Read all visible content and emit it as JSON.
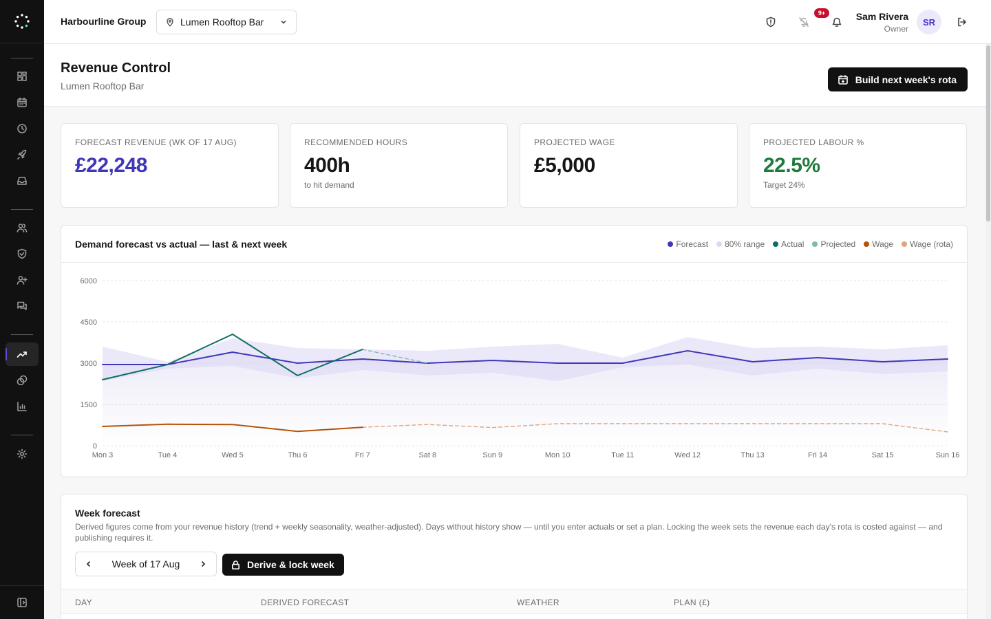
{
  "topbar": {
    "org_name": "Harbourline Group",
    "venue": "Lumen Rooftop Bar",
    "alerts_badge": "9+",
    "user_name": "Sam Rivera",
    "user_role": "Owner",
    "user_initials": "SR"
  },
  "sidebar": {
    "items": [
      "dashboard-icon",
      "calendar-icon",
      "clock-icon",
      "rocket-icon",
      "inbox-icon",
      "users-icon",
      "shield-check-icon",
      "user-plus-icon",
      "messages-icon",
      "trending-up-icon",
      "coins-icon",
      "bar-chart-icon",
      "gear-icon"
    ],
    "active": "trending-up-icon"
  },
  "header": {
    "title": "Revenue Control",
    "subtitle": "Lumen Rooftop Bar",
    "primary_action": "Build next week's rota"
  },
  "stats": [
    {
      "label": "Forecast revenue (wk of 17 Aug)",
      "value": "£22,248",
      "note": "",
      "color": "#3f37b8"
    },
    {
      "label": "Recommended hours",
      "value": "400h",
      "note": "to hit demand",
      "color": "#161616"
    },
    {
      "label": "Projected wage",
      "value": "£5,000",
      "note": "",
      "color": "#161616"
    },
    {
      "label": "Projected labour %",
      "value": "22.5%",
      "note": "Target 24%",
      "color": "#1f7a3d"
    }
  ],
  "chart": {
    "title": "Demand forecast vs actual — last & next week",
    "legend": [
      {
        "label": "Forecast",
        "color": "#3f37b8"
      },
      {
        "label": "80% range",
        "color": "#ddd9f5"
      },
      {
        "label": "Actual",
        "color": "#0f6e62"
      },
      {
        "label": "Projected",
        "color": "#7fb8b0"
      },
      {
        "label": "Wage",
        "color": "#b45309"
      },
      {
        "label": "Wage (rota)",
        "color": "#e0a57d"
      }
    ]
  },
  "chart_data": {
    "type": "line",
    "x": [
      "Mon 3",
      "Tue 4",
      "Wed 5",
      "Thu 6",
      "Fri 7",
      "Sat 8",
      "Sun 9",
      "Mon 10",
      "Tue 11",
      "Wed 12",
      "Thu 13",
      "Fri 14",
      "Sat 15",
      "Sun 16"
    ],
    "ylim": [
      0,
      6000
    ],
    "yticks": [
      0,
      1500,
      3000,
      4500,
      6000
    ],
    "grid": true,
    "legend_position": "top-right",
    "series": [
      {
        "name": "Forecast",
        "color": "#3f37b8",
        "values": [
          2950,
          2950,
          3400,
          3000,
          3150,
          3000,
          3100,
          3000,
          3000,
          3450,
          3050,
          3200,
          3050,
          3150
        ]
      },
      {
        "name": "80% range",
        "color": "#ddd9f5",
        "lower": [
          2350,
          2800,
          2900,
          2450,
          2750,
          2550,
          2650,
          2350,
          2850,
          2950,
          2550,
          2800,
          2600,
          2700
        ],
        "upper": [
          3600,
          3050,
          3900,
          3550,
          3500,
          3450,
          3600,
          3700,
          3200,
          3950,
          3550,
          3600,
          3500,
          3650
        ]
      },
      {
        "name": "Actual",
        "color": "#0f6e62",
        "values": [
          2400,
          2950,
          4050,
          2550,
          3500,
          null,
          null,
          null,
          null,
          null,
          null,
          null,
          null,
          null
        ]
      },
      {
        "name": "Projected",
        "color": "#7fb8b0",
        "values": [
          null,
          null,
          null,
          null,
          3500,
          3000,
          null,
          null,
          null,
          null,
          null,
          null,
          null,
          null
        ]
      },
      {
        "name": "Wage",
        "color": "#b45309",
        "values": [
          700,
          780,
          770,
          520,
          670,
          null,
          null,
          null,
          null,
          null,
          null,
          null,
          null,
          null
        ]
      },
      {
        "name": "Wage (rota)",
        "color": "#e0a57d",
        "values": [
          null,
          null,
          null,
          null,
          670,
          770,
          660,
          800,
          800,
          800,
          800,
          800,
          800,
          500
        ]
      }
    ]
  },
  "week": {
    "title": "Week forecast",
    "description": "Derived figures come from your revenue history (trend + weekly seasonality, weather-adjusted). Days without history show — until you enter actuals or set a plan. Locking the week sets the revenue each day's rota is costed against — and publishing requires it.",
    "label": "Week of 17 Aug",
    "lock_label": "Derive & lock week",
    "columns": [
      "Day",
      "Derived forecast",
      "Weather",
      "Plan (£)"
    ]
  }
}
